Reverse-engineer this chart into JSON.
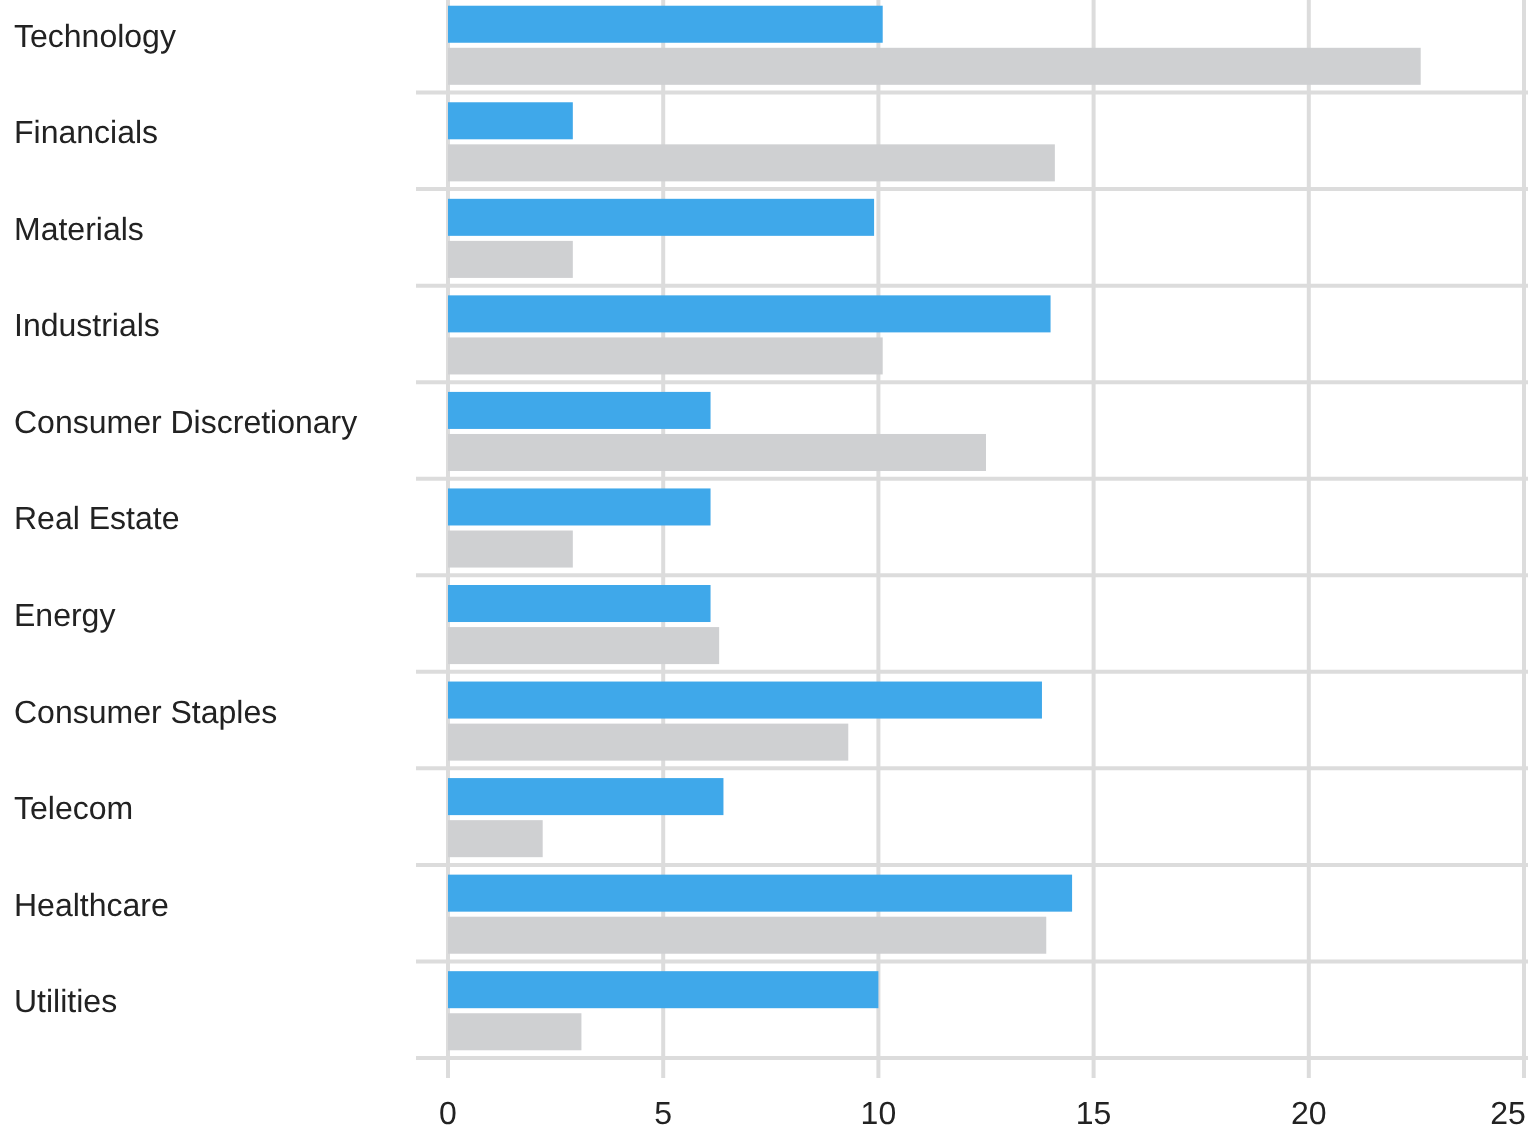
{
  "chart_data": {
    "type": "bar",
    "orientation": "horizontal",
    "categories": [
      "Technology",
      "Financials",
      "Materials",
      "Industrials",
      "Consumer Discretionary",
      "Real Estate",
      "Energy",
      "Consumer Staples",
      "Telecom",
      "Healthcare",
      "Utilities"
    ],
    "series": [
      {
        "color": "#3fa8ea",
        "values": [
          10.1,
          2.9,
          9.9,
          14.0,
          6.1,
          6.1,
          6.1,
          13.8,
          6.4,
          14.5,
          10.0
        ]
      },
      {
        "color": "#cfd0d2",
        "values": [
          22.6,
          14.1,
          2.9,
          10.1,
          12.5,
          2.9,
          6.3,
          9.3,
          2.2,
          13.9,
          3.1
        ]
      }
    ],
    "xlim": [
      0,
      25
    ],
    "xticks": [
      0,
      5,
      10,
      15,
      20,
      25
    ],
    "grid": true
  }
}
